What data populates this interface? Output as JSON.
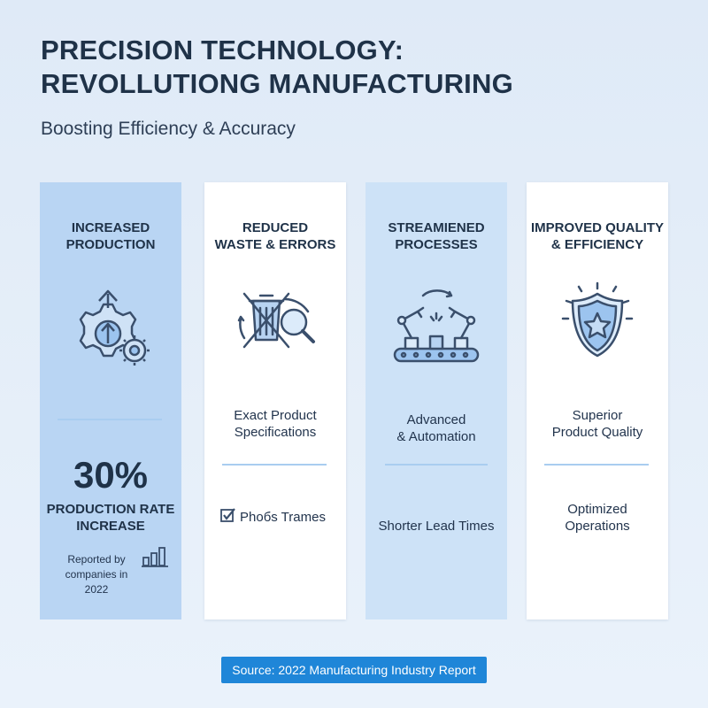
{
  "header": {
    "title_line1": "PRECISION TECHNOLOGY:",
    "title_line2": "REVOLLUTIONG MANUFACTURING",
    "subtitle": "Boosting Efficiency & Accuracy"
  },
  "cards": [
    {
      "heading_line1": "INCREASED",
      "heading_line2": "PRODUCTION",
      "icon": "gear-up-arrow-icon",
      "stat_value": "30%",
      "stat_label_line1": "PRODUCTION RATE",
      "stat_label_line2": "INCREASE",
      "note_line1": "Reported by",
      "note_line2": "companies in 2022",
      "note_icon": "bar-chart-icon"
    },
    {
      "heading_line1": "REDUCED",
      "heading_line2": "WASTE & ERRORS",
      "icon": "crossed-trash-magnifier-icon",
      "text_line1": "Exact Product",
      "text_line2": "Specifications",
      "check_text": "Phoбs Trames",
      "check_icon": "checkbox-icon"
    },
    {
      "heading_line1": "STREAMIENED",
      "heading_line2": "PROCESSES",
      "icon": "robot-arms-conveyor-icon",
      "text_line1": "Advanced",
      "text_line2": "& Automation",
      "bottom_text": "Shorter Lead Times"
    },
    {
      "heading_line1": "IMPROVED QUALITY",
      "heading_line2": "& EFFICIENCY",
      "icon": "shield-star-icon",
      "text_line1": "Superior",
      "text_line2": "Product Quality",
      "bottom_line1": "Optimized",
      "bottom_line2": "Operations"
    }
  ],
  "footer": {
    "source": "Source: 2022 Manufacturing Industry Report"
  },
  "colors": {
    "card_blue": "#b9d5f3",
    "card_lightblue": "#cde2f7",
    "icon_stroke": "#3a4f6c",
    "icon_fill": "#9cc4ef",
    "source_bg": "#1f86d8"
  }
}
